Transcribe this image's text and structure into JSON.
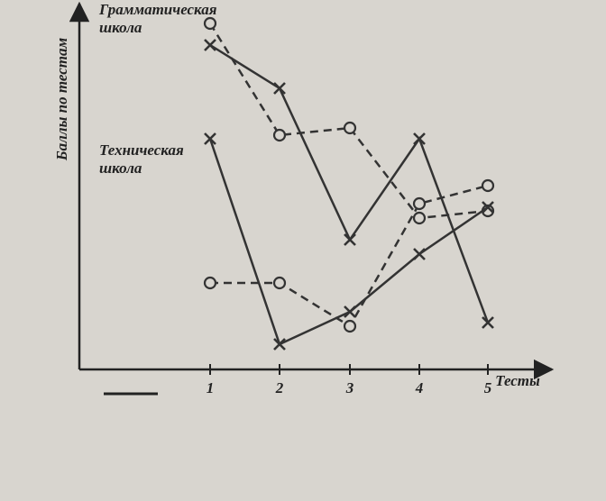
{
  "chart_data": {
    "type": "line",
    "y_label": "Баллы по тестам",
    "x_label": "Тесты",
    "annotations": [
      [
        "Грамматическая",
        "школа"
      ],
      [
        "Техническая",
        "школа"
      ]
    ],
    "categories": [
      "1",
      "2",
      "3",
      "4",
      "5"
    ],
    "ylim": [
      0,
      100
    ],
    "series": [
      {
        "color": "#333333",
        "dash": false,
        "marker": "x",
        "values": [
          90,
          78,
          36,
          64,
          13
        ]
      },
      {
        "color": "#333333",
        "dash": true,
        "marker": "o",
        "values": [
          96,
          65,
          67,
          42,
          44
        ]
      },
      {
        "color": "#333333",
        "dash": false,
        "marker": "x",
        "values": [
          64,
          7,
          16,
          32,
          45
        ]
      },
      {
        "color": "#333333",
        "dash": true,
        "marker": "o",
        "values": [
          24,
          24,
          12,
          46,
          51
        ]
      }
    ]
  }
}
